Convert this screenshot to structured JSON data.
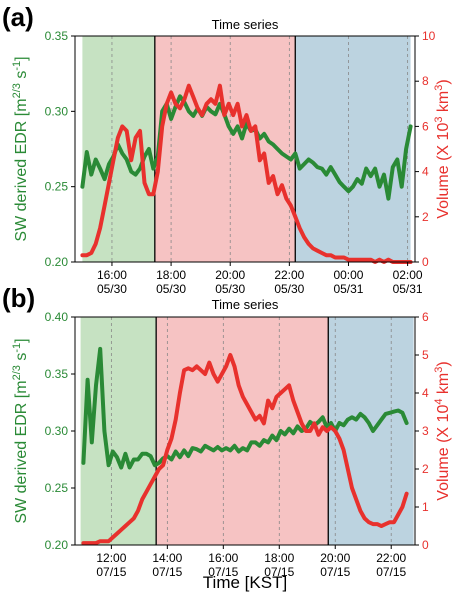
{
  "colors": {
    "green": "#2a8a36",
    "red": "#e8312d",
    "span_green": "#c6e2c2",
    "span_red": "#f6c3c3",
    "span_blue": "#bcd3e0",
    "vline": "#000000",
    "grid": "#888888"
  },
  "xlabel": "Time [KST]",
  "chart_data": [
    {
      "panel": "(a)",
      "type": "line",
      "title": "Time series",
      "x_unit": "hours since 05/30 00:00",
      "xlim": [
        14.75,
        26.25
      ],
      "xticks": [
        {
          "x": 16,
          "line1": "16:00",
          "line2": "05/30"
        },
        {
          "x": 18,
          "line1": "18:00",
          "line2": "05/30"
        },
        {
          "x": 20,
          "line1": "20:00",
          "line2": "05/30"
        },
        {
          "x": 22,
          "line1": "22:00",
          "line2": "05/30"
        },
        {
          "x": 24,
          "line1": "00:00",
          "line2": "05/31"
        },
        {
          "x": 26,
          "line1": "02:00",
          "line2": "05/31"
        }
      ],
      "periods": [
        [
          15.0,
          17.45,
          "green"
        ],
        [
          17.45,
          22.2,
          "red"
        ],
        [
          22.2,
          26.1,
          "blue"
        ]
      ],
      "left_axis": {
        "label": "SW derived EDR [m",
        "sup": "2/3",
        "mid": " s",
        "sup2": "-1",
        "end": "]",
        "ylim": [
          0.2,
          0.35
        ],
        "ticks": [
          "0.20",
          "0.25",
          "0.30",
          "0.35"
        ],
        "tick_values": [
          0.2,
          0.25,
          0.3,
          0.35
        ]
      },
      "right_axis": {
        "label": "Volume (X 10",
        "sup": "3",
        "end": " km",
        "sup2": "3",
        "close": ")",
        "ylim": [
          0,
          10
        ],
        "ticks": [
          "0",
          "2",
          "4",
          "6",
          "8",
          "10"
        ],
        "tick_values": [
          0,
          2,
          4,
          6,
          8,
          10
        ]
      },
      "series": [
        {
          "color": "green",
          "axis": "left",
          "x": [
            15.0,
            15.15,
            15.3,
            15.45,
            15.6,
            15.75,
            15.9,
            16.05,
            16.2,
            16.35,
            16.5,
            16.65,
            16.8,
            16.95,
            17.1,
            17.25,
            17.4,
            17.55,
            17.7,
            17.85,
            18.0,
            18.15,
            18.3,
            18.45,
            18.6,
            18.75,
            18.9,
            19.05,
            19.2,
            19.35,
            19.5,
            19.65,
            19.8,
            19.95,
            20.1,
            20.25,
            20.4,
            20.55,
            20.7,
            20.85,
            21.0,
            21.15,
            21.3,
            21.45,
            21.6,
            21.75,
            21.9,
            22.05,
            22.2,
            22.35,
            22.5,
            22.65,
            22.8,
            22.95,
            23.1,
            23.25,
            23.4,
            23.55,
            23.7,
            23.85,
            24.0,
            24.15,
            24.3,
            24.45,
            24.6,
            24.75,
            24.9,
            25.05,
            25.2,
            25.35,
            25.5,
            25.65,
            25.8,
            25.95,
            26.1
          ],
          "y": [
            0.25,
            0.273,
            0.258,
            0.268,
            0.262,
            0.255,
            0.265,
            0.27,
            0.278,
            0.272,
            0.268,
            0.26,
            0.258,
            0.262,
            0.27,
            0.275,
            0.262,
            0.27,
            0.3,
            0.305,
            0.295,
            0.303,
            0.31,
            0.306,
            0.3,
            0.297,
            0.302,
            0.297,
            0.303,
            0.3,
            0.298,
            0.305,
            0.298,
            0.29,
            0.285,
            0.29,
            0.282,
            0.292,
            0.287,
            0.288,
            0.282,
            0.285,
            0.28,
            0.278,
            0.275,
            0.272,
            0.27,
            0.268,
            0.272,
            0.262,
            0.265,
            0.268,
            0.266,
            0.263,
            0.262,
            0.258,
            0.263,
            0.258,
            0.253,
            0.25,
            0.247,
            0.25,
            0.255,
            0.252,
            0.262,
            0.257,
            0.262,
            0.25,
            0.258,
            0.242,
            0.263,
            0.268,
            0.25,
            0.275,
            0.29
          ]
        },
        {
          "color": "red",
          "axis": "right",
          "x": [
            15.0,
            15.15,
            15.3,
            15.45,
            15.6,
            15.75,
            15.9,
            16.05,
            16.2,
            16.35,
            16.5,
            16.65,
            16.8,
            16.95,
            17.1,
            17.25,
            17.4,
            17.55,
            17.7,
            17.85,
            18.0,
            18.15,
            18.3,
            18.45,
            18.6,
            18.75,
            18.9,
            19.05,
            19.2,
            19.35,
            19.5,
            19.65,
            19.8,
            19.95,
            20.1,
            20.25,
            20.4,
            20.55,
            20.7,
            20.85,
            21.0,
            21.15,
            21.3,
            21.45,
            21.6,
            21.75,
            21.9,
            22.05,
            22.2,
            22.35,
            22.5,
            22.65,
            22.8,
            22.95,
            23.1,
            23.25,
            23.4,
            23.55,
            23.7,
            23.85,
            24.0,
            24.15,
            24.3,
            24.45,
            24.6,
            24.75,
            24.9,
            25.05,
            25.2,
            25.35,
            25.5,
            25.65,
            25.8,
            25.95,
            26.1
          ],
          "y": [
            0.3,
            0.3,
            0.4,
            0.8,
            1.5,
            2.5,
            3.5,
            4.5,
            5.5,
            6.0,
            5.8,
            4.5,
            5.5,
            5.8,
            3.5,
            3.0,
            3.0,
            4.0,
            6.0,
            7.0,
            7.5,
            7.0,
            6.8,
            7.2,
            7.8,
            7.3,
            6.8,
            6.5,
            7.0,
            7.2,
            7.0,
            7.8,
            6.5,
            7.0,
            6.5,
            7.0,
            6.0,
            6.5,
            5.8,
            6.0,
            4.5,
            4.8,
            3.5,
            3.8,
            3.0,
            3.4,
            2.8,
            2.5,
            2.0,
            1.5,
            1.1,
            0.8,
            0.6,
            0.5,
            0.4,
            0.3,
            0.3,
            0.2,
            0.2,
            0.2,
            0.1,
            0.1,
            0.1,
            0.1,
            0.1,
            0.1,
            0.0,
            0.1,
            0.0,
            0.1,
            0.0,
            0.0,
            0.0,
            0.0,
            0.0
          ]
        }
      ]
    },
    {
      "panel": "(b)",
      "type": "line",
      "title": "Time series",
      "x_unit": "hours since 07/15 00:00",
      "xlim": [
        10.7,
        22.85
      ],
      "xticks": [
        {
          "x": 12,
          "line1": "12:00",
          "line2": "07/15"
        },
        {
          "x": 14,
          "line1": "14:00",
          "line2": "07/15"
        },
        {
          "x": 16,
          "line1": "16:00",
          "line2": "07/15"
        },
        {
          "x": 18,
          "line1": "18:00",
          "line2": "07/15"
        },
        {
          "x": 20,
          "line1": "20:00",
          "line2": "07/15"
        },
        {
          "x": 22,
          "line1": "22:00",
          "line2": "07/15"
        }
      ],
      "periods": [
        [
          10.9,
          13.6,
          "green"
        ],
        [
          13.6,
          19.75,
          "red"
        ],
        [
          19.75,
          22.8,
          "blue"
        ]
      ],
      "left_axis": {
        "label": "SW derived EDR [m",
        "sup": "2/3",
        "mid": " s",
        "sup2": "-1",
        "end": "]",
        "ylim": [
          0.2,
          0.4
        ],
        "ticks": [
          "0.20",
          "0.25",
          "0.30",
          "0.35",
          "0.40"
        ],
        "tick_values": [
          0.2,
          0.25,
          0.3,
          0.35,
          0.4
        ]
      },
      "right_axis": {
        "label": "Volume (X 10",
        "sup": "4",
        "end": " km",
        "sup2": "3",
        "close": ")",
        "ylim": [
          0,
          6
        ],
        "ticks": [
          "0",
          "1",
          "2",
          "3",
          "4",
          "5",
          "6"
        ],
        "tick_values": [
          0,
          1,
          2,
          3,
          4,
          5,
          6
        ]
      },
      "series": [
        {
          "color": "green",
          "axis": "left",
          "x": [
            11.0,
            11.15,
            11.3,
            11.45,
            11.6,
            11.75,
            11.9,
            12.05,
            12.2,
            12.35,
            12.5,
            12.65,
            12.8,
            12.95,
            13.1,
            13.25,
            13.4,
            13.55,
            13.7,
            13.85,
            14.0,
            14.15,
            14.3,
            14.45,
            14.6,
            14.75,
            14.9,
            15.05,
            15.2,
            15.35,
            15.5,
            15.65,
            15.8,
            15.95,
            16.1,
            16.25,
            16.4,
            16.55,
            16.7,
            16.85,
            17.0,
            17.15,
            17.3,
            17.45,
            17.6,
            17.75,
            17.9,
            18.05,
            18.2,
            18.35,
            18.5,
            18.65,
            18.8,
            18.95,
            19.1,
            19.25,
            19.4,
            19.55,
            19.7,
            19.85,
            20.0,
            20.15,
            20.3,
            20.45,
            20.6,
            20.75,
            20.9,
            21.05,
            21.2,
            21.35,
            21.5,
            21.65,
            21.8,
            21.95,
            22.1,
            22.25,
            22.4,
            22.55
          ],
          "y": [
            0.272,
            0.345,
            0.29,
            0.34,
            0.372,
            0.3,
            0.27,
            0.282,
            0.277,
            0.268,
            0.28,
            0.268,
            0.275,
            0.275,
            0.28,
            0.28,
            0.278,
            0.27,
            0.272,
            0.276,
            0.278,
            0.275,
            0.282,
            0.277,
            0.283,
            0.278,
            0.285,
            0.284,
            0.282,
            0.287,
            0.285,
            0.283,
            0.286,
            0.283,
            0.285,
            0.283,
            0.287,
            0.282,
            0.285,
            0.283,
            0.29,
            0.29,
            0.287,
            0.292,
            0.29,
            0.296,
            0.292,
            0.3,
            0.297,
            0.302,
            0.298,
            0.304,
            0.3,
            0.302,
            0.308,
            0.305,
            0.308,
            0.312,
            0.303,
            0.307,
            0.3,
            0.307,
            0.305,
            0.31,
            0.312,
            0.31,
            0.315,
            0.312,
            0.307,
            0.3,
            0.305,
            0.31,
            0.315,
            0.316,
            0.317,
            0.318,
            0.316,
            0.307
          ]
        },
        {
          "color": "red",
          "axis": "right",
          "x": [
            11.0,
            11.15,
            11.3,
            11.45,
            11.6,
            11.75,
            11.9,
            12.05,
            12.2,
            12.35,
            12.5,
            12.65,
            12.8,
            12.95,
            13.1,
            13.25,
            13.4,
            13.55,
            13.7,
            13.85,
            14.0,
            14.15,
            14.3,
            14.45,
            14.6,
            14.75,
            14.9,
            15.05,
            15.2,
            15.35,
            15.5,
            15.65,
            15.8,
            15.95,
            16.1,
            16.25,
            16.4,
            16.55,
            16.7,
            16.85,
            17.0,
            17.15,
            17.3,
            17.45,
            17.6,
            17.75,
            17.9,
            18.05,
            18.2,
            18.35,
            18.5,
            18.65,
            18.8,
            18.95,
            19.1,
            19.25,
            19.4,
            19.55,
            19.7,
            19.85,
            20.0,
            20.15,
            20.3,
            20.45,
            20.6,
            20.75,
            20.9,
            21.05,
            21.2,
            21.35,
            21.5,
            21.65,
            21.8,
            21.95,
            22.1,
            22.25,
            22.4,
            22.55
          ],
          "y": [
            0.05,
            0.05,
            0.05,
            0.05,
            0.1,
            0.1,
            0.1,
            0.2,
            0.3,
            0.4,
            0.5,
            0.6,
            0.7,
            0.9,
            1.2,
            1.4,
            1.6,
            1.8,
            2.0,
            2.1,
            2.5,
            2.8,
            3.3,
            4.0,
            4.6,
            4.65,
            4.6,
            4.7,
            4.6,
            4.5,
            4.8,
            4.5,
            4.3,
            4.5,
            4.7,
            5.0,
            4.7,
            4.2,
            3.9,
            3.7,
            3.5,
            3.3,
            3.4,
            3.2,
            3.8,
            3.6,
            3.9,
            4.0,
            4.1,
            4.2,
            3.8,
            3.5,
            3.2,
            3.0,
            3.0,
            3.2,
            2.9,
            3.1,
            3.0,
            3.1,
            3.0,
            2.8,
            2.5,
            2.0,
            1.5,
            1.2,
            0.9,
            0.7,
            0.6,
            0.55,
            0.55,
            0.5,
            0.55,
            0.6,
            0.6,
            0.8,
            1.0,
            1.35
          ]
        }
      ]
    }
  ]
}
